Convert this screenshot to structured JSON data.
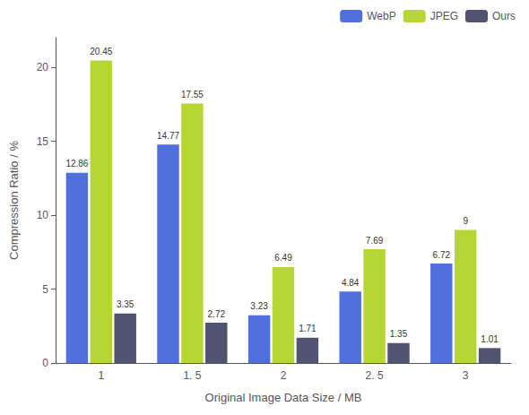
{
  "chart_data": {
    "type": "bar",
    "categories": [
      "1",
      "1. 5",
      "2",
      "2. 5",
      "3"
    ],
    "series": [
      {
        "name": "WebP",
        "values": [
          12.86,
          14.77,
          3.23,
          4.84,
          6.72
        ]
      },
      {
        "name": "JPEG",
        "values": [
          20.45,
          17.55,
          6.49,
          7.69,
          9
        ]
      },
      {
        "name": "Ours",
        "values": [
          3.35,
          2.72,
          1.71,
          1.35,
          1.01
        ]
      }
    ],
    "xlabel": "Original Image Data Size / MB",
    "ylabel": "Compression Ratio / %",
    "ylim": [
      0,
      22
    ],
    "yticks": [
      0,
      5,
      10,
      15,
      20
    ],
    "data_labels": true,
    "legend": "upper right",
    "grid": false
  }
}
